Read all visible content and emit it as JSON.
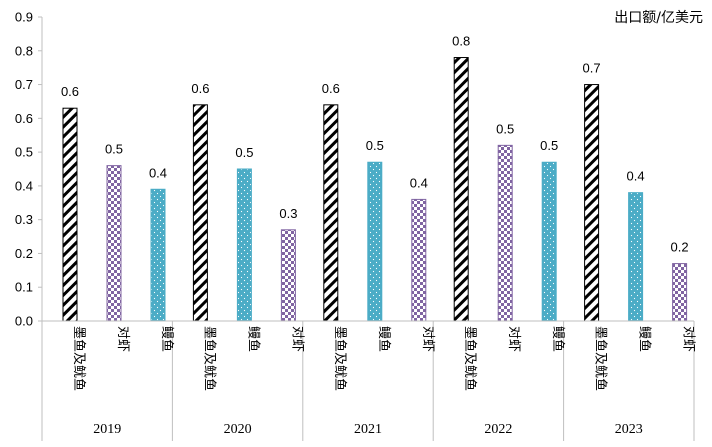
{
  "chart_data": {
    "type": "bar",
    "unit_label": "出口额/亿美元",
    "ylim": [
      0,
      0.9
    ],
    "yticks": [
      "0.0",
      "0.1",
      "0.2",
      "0.3",
      "0.4",
      "0.5",
      "0.6",
      "0.7",
      "0.8",
      "0.9"
    ],
    "grid": false,
    "groups": [
      {
        "year": "2019",
        "bars": [
          {
            "category": "墨鱼及鱿鱼",
            "value": 0.63,
            "label": "0.6",
            "style": "hatch"
          },
          {
            "category": "对虾",
            "value": 0.46,
            "label": "0.5",
            "style": "check"
          },
          {
            "category": "鳗鱼",
            "value": 0.39,
            "label": "0.4",
            "style": "teal"
          }
        ]
      },
      {
        "year": "2020",
        "bars": [
          {
            "category": "墨鱼及鱿鱼",
            "value": 0.64,
            "label": "0.6",
            "style": "hatch"
          },
          {
            "category": "鳗鱼",
            "value": 0.45,
            "label": "0.5",
            "style": "teal"
          },
          {
            "category": "对虾",
            "value": 0.27,
            "label": "0.3",
            "style": "check"
          }
        ]
      },
      {
        "year": "2021",
        "bars": [
          {
            "category": "墨鱼及鱿鱼",
            "value": 0.64,
            "label": "0.6",
            "style": "hatch"
          },
          {
            "category": "鳗鱼",
            "value": 0.47,
            "label": "0.5",
            "style": "teal"
          },
          {
            "category": "对虾",
            "value": 0.36,
            "label": "0.4",
            "style": "check"
          }
        ]
      },
      {
        "year": "2022",
        "bars": [
          {
            "category": "墨鱼及鱿鱼",
            "value": 0.78,
            "label": "0.8",
            "style": "hatch"
          },
          {
            "category": "对虾",
            "value": 0.52,
            "label": "0.5",
            "style": "check"
          },
          {
            "category": "鳗鱼",
            "value": 0.47,
            "label": "0.5",
            "style": "teal"
          }
        ]
      },
      {
        "year": "2023",
        "bars": [
          {
            "category": "墨鱼及鱿鱼",
            "value": 0.7,
            "label": "0.7",
            "style": "hatch"
          },
          {
            "category": "鳗鱼",
            "value": 0.38,
            "label": "0.4",
            "style": "teal"
          },
          {
            "category": "对虾",
            "value": 0.17,
            "label": "0.2",
            "style": "check"
          }
        ]
      }
    ],
    "colors": {
      "teal": "#4bacc6",
      "check": "#8064a2",
      "hatch": "#000000",
      "axis": "#bfbfbf"
    }
  }
}
